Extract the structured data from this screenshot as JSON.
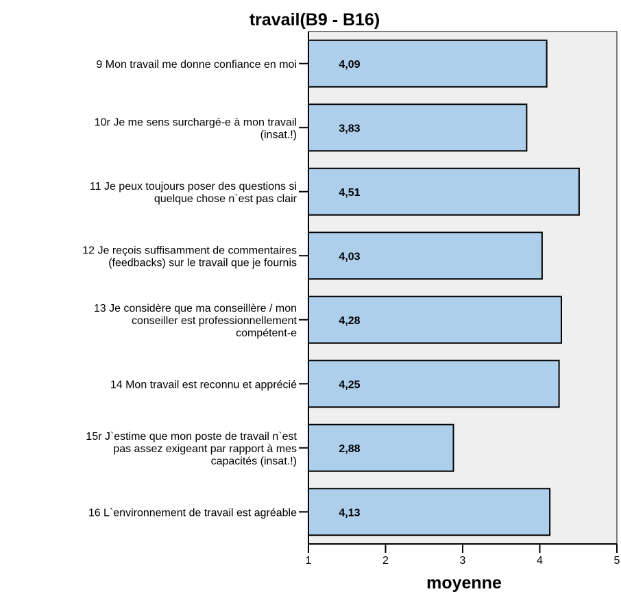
{
  "chart_data": {
    "type": "bar",
    "orientation": "horizontal",
    "title": "travail(B9 - B16)",
    "xlabel": "moyenne",
    "ylabel": "",
    "xlim": [
      1,
      5
    ],
    "ticks": [
      "1",
      "2",
      "3",
      "4",
      "5"
    ],
    "grid": false,
    "legend": "none",
    "colors": {
      "bar_fill": "#aecfec",
      "bar_stroke": "#000000",
      "plot_background": "#efefef",
      "axis": "#000000"
    },
    "categories": [
      [
        "9 Mon travail me donne confiance en moi"
      ],
      [
        "10r Je me sens surchargé-e à mon travail",
        "(insat.!)"
      ],
      [
        "11 Je peux toujours poser des questions si",
        "quelque chose n`est pas clair"
      ],
      [
        "12 Je reçois suffisamment de commentaires",
        "(feedbacks) sur le travail que je fournis"
      ],
      [
        "13 Je considère que ma conseillère / mon",
        "conseiller est professionnellement",
        "compétent-e"
      ],
      [
        "14 Mon travail est reconnu et apprécié"
      ],
      [
        "15r J`estime que mon poste de travail n`est",
        "pas assez exigeant par rapport à mes",
        "capacités (insat.!)"
      ],
      [
        "16 L`environnement de travail est agréable"
      ]
    ],
    "values": [
      4.09,
      3.83,
      4.51,
      4.03,
      4.28,
      4.25,
      2.88,
      4.13
    ],
    "data_labels": [
      "4,09",
      "3,83",
      "4,51",
      "4,03",
      "4,28",
      "4,25",
      "2,88",
      "4,13"
    ]
  }
}
